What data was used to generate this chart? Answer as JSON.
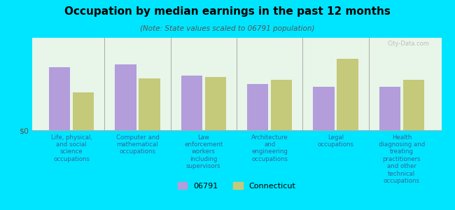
{
  "title": "Occupation by median earnings in the past 12 months",
  "subtitle": "(Note: State values scaled to 06791 population)",
  "categories": [
    "Life, physical,\nand social\nscience\noccupations",
    "Computer and\nmathematical\noccupations",
    "Law\nenforcement\nworkers\nincluding\nsupervisors",
    "Architecture\nand\nengineering\noccupations",
    "Legal\noccupations",
    "Health\ndiagnosing and\ntreating\npractitioners\nand other\ntechnical\noccupations"
  ],
  "values_06791": [
    75,
    78,
    65,
    55,
    52,
    52
  ],
  "values_ct": [
    45,
    62,
    63,
    60,
    85,
    60
  ],
  "color_06791": "#b39ddb",
  "color_ct": "#c5c97a",
  "background_color": "#00e5ff",
  "plot_bg_color": "#e8f5e9",
  "legend_06791": "06791",
  "legend_ct": "Connecticut",
  "ylabel": "$0",
  "watermark": "City-Data.com"
}
